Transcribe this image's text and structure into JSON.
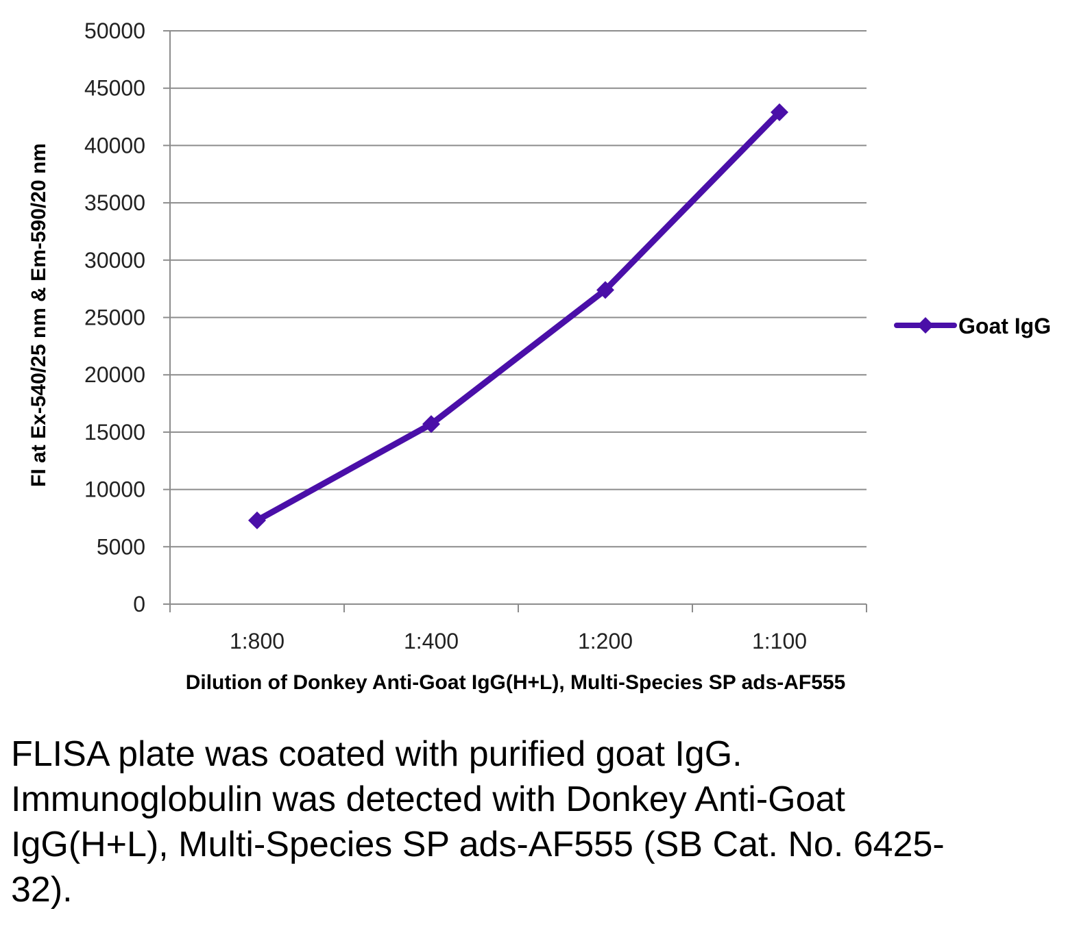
{
  "chart_data": {
    "type": "line",
    "categories": [
      "1:800",
      "1:400",
      "1:200",
      "1:100"
    ],
    "series": [
      {
        "name": "Goat IgG",
        "values": [
          7300,
          15700,
          27400,
          42900
        ],
        "color": "#4a0fa8"
      }
    ],
    "xlabel": "Dilution of Donkey Anti-Goat IgG(H+L), Multi-Species SP ads-AF555",
    "ylabel": "FI at Ex-540/25 nm & Em-590/20 nm",
    "ylim": [
      0,
      50000
    ],
    "yticks": [
      "0",
      "5000",
      "10000",
      "15000",
      "20000",
      "25000",
      "30000",
      "35000",
      "40000",
      "45000",
      "50000"
    ],
    "grid": "horizontal",
    "legend_position": "right",
    "marker": "diamond"
  },
  "caption": "FLISA plate was coated with purified goat IgG.  Immunoglobulin was detected with Donkey Anti-Goat IgG(H+L), Multi-Species SP ads-AF555 (SB Cat. No. 6425-32)."
}
